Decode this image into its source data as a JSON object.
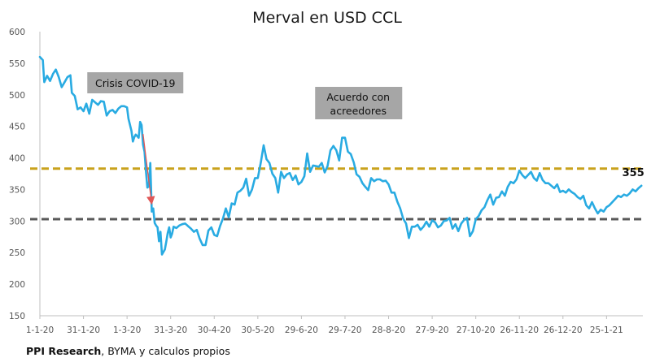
{
  "colors": {
    "line": "#29ABE2",
    "upper_ref": "#C9A21C",
    "lower_ref": "#595959",
    "box_bg": "#A6A6A6",
    "arrow": "#E05757",
    "axis": "#BFBFBF"
  },
  "chart_data": {
    "type": "line",
    "title": "Merval en USD CCL",
    "xlabel": "",
    "ylabel": "",
    "x_tick_labels": [
      "1-1-20",
      "31-1-20",
      "1-3-20",
      "31-3-20",
      "30-4-20",
      "30-5-20",
      "29-6-20",
      "29-7-20",
      "28-8-20",
      "27-9-20",
      "27-10-20",
      "26-11-20",
      "26-12-20",
      "25-1-21"
    ],
    "y_ticks": [
      150,
      200,
      250,
      300,
      350,
      400,
      450,
      500,
      550,
      600
    ],
    "ylim": [
      150,
      600
    ],
    "xlim_days": [
      0,
      415
    ],
    "reference_lines": [
      {
        "value": 383,
        "style": "dashed",
        "color_key": "upper_ref"
      },
      {
        "value": 303,
        "style": "dashed",
        "color_key": "lower_ref"
      }
    ],
    "annotations": [
      {
        "text": "Crisis COVID-19",
        "day": 64,
        "value": 519
      },
      {
        "text_lines": [
          "Acuerdo con",
          "acreedores"
        ],
        "day": 190,
        "value": 492
      }
    ],
    "last_value_label": "355",
    "grid": false,
    "series": [
      {
        "points": [
          [
            0,
            560
          ],
          [
            2,
            555
          ],
          [
            3,
            520
          ],
          [
            5,
            530
          ],
          [
            7,
            522
          ],
          [
            9,
            533
          ],
          [
            11,
            540
          ],
          [
            13,
            528
          ],
          [
            15,
            512
          ],
          [
            17,
            520
          ],
          [
            19,
            528
          ],
          [
            21,
            531
          ],
          [
            22,
            503
          ],
          [
            24,
            498
          ],
          [
            26,
            477
          ],
          [
            28,
            480
          ],
          [
            30,
            474
          ],
          [
            32,
            486
          ],
          [
            34,
            470
          ],
          [
            36,
            492
          ],
          [
            38,
            488
          ],
          [
            40,
            484
          ],
          [
            42,
            490
          ],
          [
            44,
            489
          ],
          [
            46,
            467
          ],
          [
            48,
            474
          ],
          [
            50,
            476
          ],
          [
            52,
            471
          ],
          [
            54,
            478
          ],
          [
            56,
            482
          ],
          [
            58,
            482
          ],
          [
            60,
            480
          ],
          [
            61,
            462
          ],
          [
            63,
            443
          ],
          [
            64,
            426
          ],
          [
            65,
            433
          ],
          [
            66,
            437
          ],
          [
            68,
            432
          ],
          [
            69,
            457
          ],
          [
            70,
            452
          ],
          [
            71,
            421
          ],
          [
            72,
            410
          ],
          [
            73,
            380
          ],
          [
            74,
            353
          ],
          [
            75,
            355
          ],
          [
            76,
            392
          ],
          [
            77,
            315
          ],
          [
            78,
            320
          ],
          [
            79,
            297
          ],
          [
            80,
            293
          ],
          [
            81,
            290
          ],
          [
            82,
            268
          ],
          [
            83,
            283
          ],
          [
            84,
            247
          ],
          [
            86,
            255
          ],
          [
            87,
            267
          ],
          [
            88,
            281
          ],
          [
            89,
            290
          ],
          [
            90,
            274
          ],
          [
            91,
            280
          ],
          [
            92,
            291
          ],
          [
            94,
            289
          ],
          [
            96,
            293
          ],
          [
            98,
            295
          ],
          [
            100,
            296
          ],
          [
            102,
            292
          ],
          [
            104,
            288
          ],
          [
            106,
            283
          ],
          [
            108,
            286
          ],
          [
            110,
            272
          ],
          [
            112,
            262
          ],
          [
            114,
            262
          ],
          [
            116,
            285
          ],
          [
            118,
            290
          ],
          [
            120,
            278
          ],
          [
            122,
            276
          ],
          [
            124,
            292
          ],
          [
            126,
            304
          ],
          [
            128,
            320
          ],
          [
            130,
            306
          ],
          [
            132,
            328
          ],
          [
            134,
            326
          ],
          [
            136,
            345
          ],
          [
            138,
            348
          ],
          [
            140,
            353
          ],
          [
            142,
            367
          ],
          [
            144,
            340
          ],
          [
            146,
            350
          ],
          [
            148,
            368
          ],
          [
            150,
            368
          ],
          [
            152,
            392
          ],
          [
            154,
            420
          ],
          [
            156,
            398
          ],
          [
            158,
            392
          ],
          [
            160,
            375
          ],
          [
            162,
            368
          ],
          [
            164,
            345
          ],
          [
            166,
            378
          ],
          [
            168,
            368
          ],
          [
            170,
            374
          ],
          [
            172,
            376
          ],
          [
            174,
            365
          ],
          [
            176,
            372
          ],
          [
            178,
            358
          ],
          [
            180,
            362
          ],
          [
            182,
            371
          ],
          [
            184,
            407
          ],
          [
            186,
            378
          ],
          [
            188,
            388
          ],
          [
            190,
            387
          ],
          [
            192,
            386
          ],
          [
            194,
            392
          ],
          [
            196,
            377
          ],
          [
            198,
            387
          ],
          [
            200,
            412
          ],
          [
            202,
            419
          ],
          [
            204,
            412
          ],
          [
            206,
            396
          ],
          [
            208,
            432
          ],
          [
            210,
            432
          ],
          [
            212,
            410
          ],
          [
            214,
            406
          ],
          [
            216,
            393
          ],
          [
            218,
            374
          ],
          [
            220,
            370
          ],
          [
            222,
            360
          ],
          [
            224,
            354
          ],
          [
            226,
            349
          ],
          [
            228,
            368
          ],
          [
            230,
            363
          ],
          [
            232,
            366
          ],
          [
            234,
            366
          ],
          [
            236,
            363
          ],
          [
            238,
            364
          ],
          [
            240,
            358
          ],
          [
            242,
            345
          ],
          [
            244,
            345
          ],
          [
            246,
            331
          ],
          [
            248,
            320
          ],
          [
            250,
            304
          ],
          [
            252,
            296
          ],
          [
            254,
            273
          ],
          [
            256,
            291
          ],
          [
            258,
            291
          ],
          [
            260,
            294
          ],
          [
            262,
            286
          ],
          [
            264,
            291
          ],
          [
            266,
            299
          ],
          [
            268,
            291
          ],
          [
            270,
            301
          ],
          [
            272,
            298
          ],
          [
            274,
            290
          ],
          [
            276,
            293
          ],
          [
            278,
            300
          ],
          [
            280,
            301
          ],
          [
            282,
            305
          ],
          [
            284,
            288
          ],
          [
            286,
            295
          ],
          [
            288,
            284
          ],
          [
            290,
            296
          ],
          [
            292,
            302
          ],
          [
            294,
            305
          ],
          [
            296,
            276
          ],
          [
            298,
            284
          ],
          [
            300,
            303
          ],
          [
            302,
            308
          ],
          [
            304,
            317
          ],
          [
            306,
            322
          ],
          [
            308,
            333
          ],
          [
            310,
            342
          ],
          [
            312,
            326
          ],
          [
            314,
            337
          ],
          [
            316,
            338
          ],
          [
            318,
            347
          ],
          [
            320,
            340
          ],
          [
            322,
            354
          ],
          [
            324,
            362
          ],
          [
            326,
            360
          ],
          [
            328,
            366
          ],
          [
            330,
            380
          ],
          [
            332,
            373
          ],
          [
            334,
            368
          ],
          [
            336,
            373
          ],
          [
            338,
            378
          ],
          [
            340,
            368
          ],
          [
            342,
            364
          ],
          [
            344,
            376
          ],
          [
            346,
            365
          ],
          [
            348,
            360
          ],
          [
            350,
            360
          ],
          [
            352,
            356
          ],
          [
            354,
            352
          ],
          [
            356,
            358
          ],
          [
            358,
            346
          ],
          [
            360,
            348
          ],
          [
            362,
            345
          ],
          [
            364,
            350
          ],
          [
            366,
            346
          ],
          [
            368,
            343
          ],
          [
            370,
            338
          ],
          [
            372,
            335
          ],
          [
            374,
            340
          ],
          [
            376,
            325
          ],
          [
            378,
            320
          ],
          [
            380,
            330
          ],
          [
            382,
            320
          ],
          [
            384,
            312
          ],
          [
            386,
            318
          ],
          [
            388,
            315
          ],
          [
            390,
            322
          ],
          [
            392,
            325
          ],
          [
            394,
            330
          ],
          [
            396,
            335
          ],
          [
            398,
            340
          ],
          [
            400,
            338
          ],
          [
            402,
            342
          ],
          [
            404,
            340
          ],
          [
            406,
            344
          ],
          [
            408,
            350
          ],
          [
            410,
            347
          ],
          [
            412,
            352
          ],
          [
            414,
            356
          ]
        ]
      }
    ]
  },
  "source": {
    "bold": "PPI Research",
    "rest": ", BYMA y calculos propios"
  }
}
